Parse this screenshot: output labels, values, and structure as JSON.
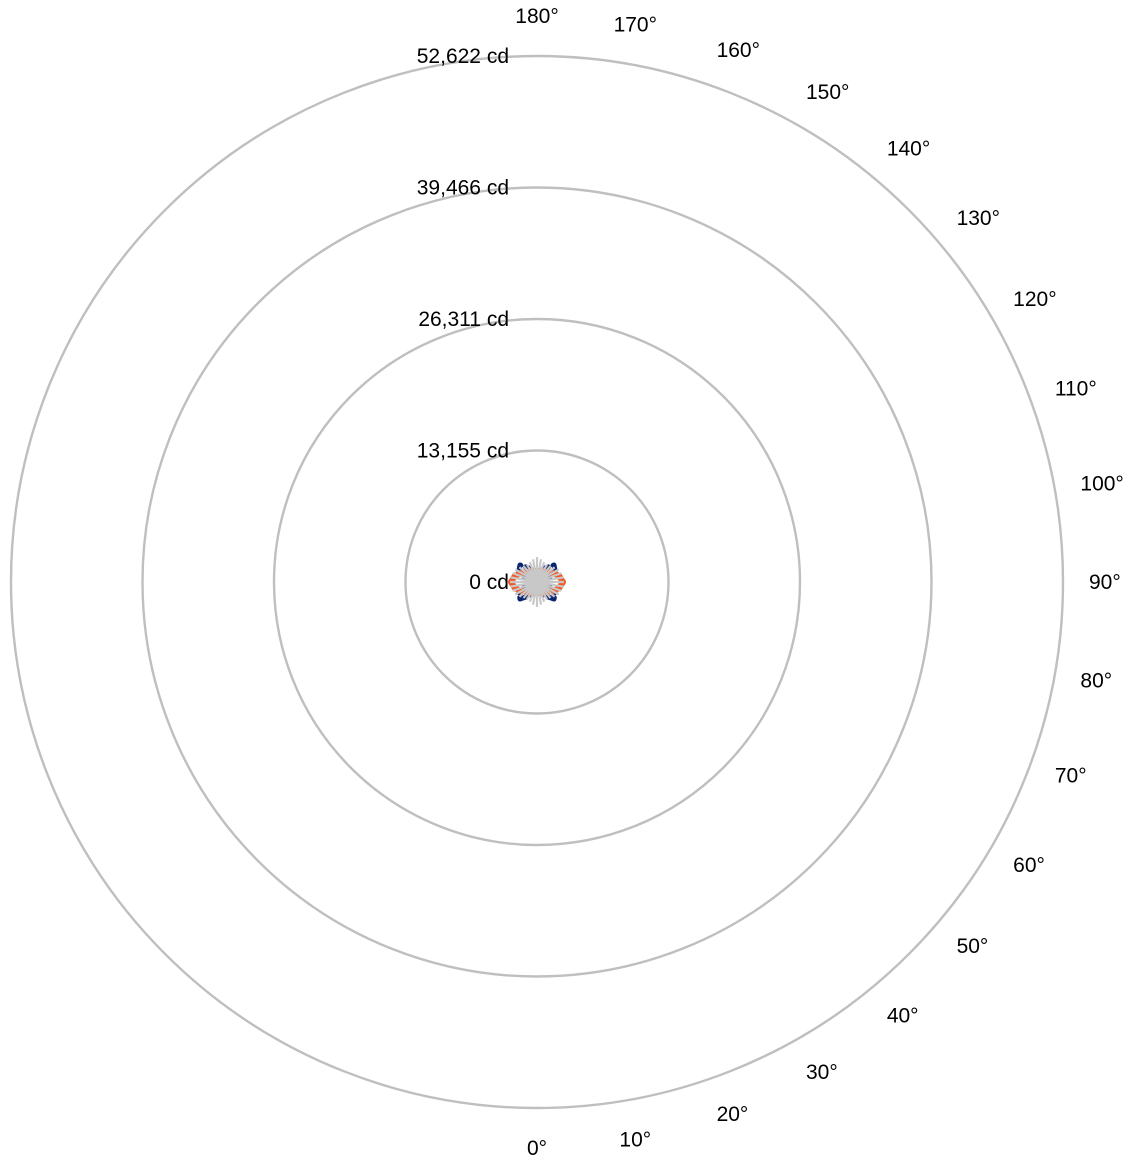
{
  "chart_data": {
    "type": "polar",
    "title": "",
    "unit": "cd",
    "radial_ticks": [
      "0 cd",
      "13,155 cd",
      "26,311 cd",
      "39,466 cd",
      "52,622 cd"
    ],
    "radial_values": [
      0,
      13155,
      26311,
      39466,
      52622
    ],
    "angle_ticks": [
      "0°",
      "10°",
      "20°",
      "30°",
      "40°",
      "50°",
      "60°",
      "70°",
      "80°",
      "90°",
      "100°",
      "110°",
      "120°",
      "130°",
      "140°",
      "150°",
      "160°",
      "170°",
      "180°"
    ],
    "angle_values": [
      0,
      10,
      20,
      30,
      40,
      50,
      60,
      70,
      80,
      90,
      100,
      110,
      120,
      130,
      140,
      150,
      160,
      170,
      180
    ],
    "rmax": 52622,
    "grid": true,
    "colors": {
      "grid": "#bfbfbf",
      "series_1": "#0b2470",
      "series_2": "#f05a28",
      "series_3": "#c8c8c8"
    },
    "series": [
      {
        "style": "dashed",
        "color": "#0b2470",
        "angles": [
          0,
          15,
          30,
          45,
          60,
          75,
          90,
          105,
          120,
          135,
          150,
          165,
          180
        ],
        "values": [
          800,
          1100,
          1600,
          2400,
          2100,
          1000,
          200,
          1000,
          2100,
          2400,
          1600,
          1100,
          800
        ]
      },
      {
        "style": "solid",
        "color": "#f05a28",
        "angles": [
          0,
          15,
          30,
          45,
          60,
          75,
          90,
          105,
          120,
          135,
          150,
          165,
          180
        ],
        "values": [
          1100,
          1150,
          1250,
          1400,
          1800,
          2300,
          2600,
          2300,
          1800,
          1400,
          1250,
          1150,
          1100
        ]
      },
      {
        "style": "spokes",
        "color": "#c8c8c8",
        "angles": [
          0,
          10,
          20,
          30,
          40,
          50,
          60,
          70,
          80,
          90,
          100,
          110,
          120,
          130,
          140,
          150,
          160,
          170,
          180
        ],
        "values": [
          2500,
          2300,
          2100,
          2000,
          2100,
          2300,
          2500,
          2600,
          2700,
          2700,
          2700,
          2600,
          2500,
          2300,
          2100,
          2000,
          2100,
          2300,
          2500
        ]
      }
    ]
  }
}
